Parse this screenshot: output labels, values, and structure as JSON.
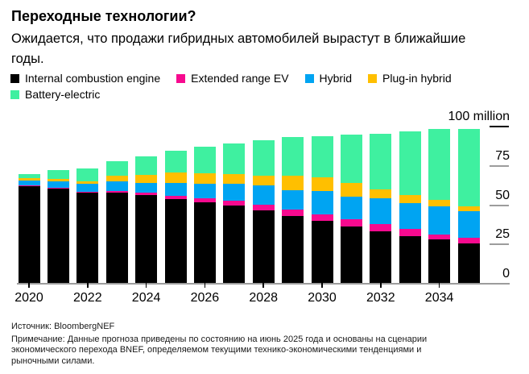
{
  "chart_data": {
    "type": "bar",
    "stacked": true,
    "title": "Переходные технологии?",
    "subtitle": "Ожидается, что продажи гибридных автомобилей вырастут в ближайшие\nгоды.",
    "unit": "million vehicles per year",
    "grid": false,
    "legend_position": "top-left",
    "categories": [
      "2020",
      "2021",
      "2022",
      "2023",
      "2024",
      "2025",
      "2026",
      "2027",
      "2028",
      "2029",
      "2030",
      "2031",
      "2032",
      "2033",
      "2034",
      "2035"
    ],
    "series": [
      {
        "id": "ice",
        "name": "Internal combustion engine",
        "color": "#000000",
        "values": [
          62,
          60,
          57.5,
          57.5,
          56,
          53.5,
          51.5,
          49.5,
          46,
          42.5,
          39.5,
          36,
          33,
          30,
          27.5,
          25
        ]
      },
      {
        "id": "erev",
        "name": "Extended range EV",
        "color": "#f70a8f",
        "values": [
          0.3,
          0.5,
          0.6,
          1.2,
          1.6,
          1.7,
          2.6,
          3,
          3.8,
          4,
          4,
          4.5,
          4.5,
          4.5,
          3.5,
          3.6
        ]
      },
      {
        "id": "hybrid",
        "name": "Hybrid",
        "color": "#00a4f2",
        "values": [
          3,
          4.3,
          4.8,
          6,
          6.2,
          8.5,
          8.9,
          10.5,
          12.3,
          12.7,
          15,
          14.5,
          16.6,
          16.5,
          17.8,
          17
        ]
      },
      {
        "id": "phev",
        "name": "Plug-in hybrid",
        "color": "#ffbf00",
        "values": [
          1.3,
          1.4,
          1.7,
          3.5,
          5.1,
          6.4,
          7,
          6.5,
          6.2,
          9,
          8.5,
          8.5,
          5.6,
          4.8,
          4.1,
          3
        ]
      },
      {
        "id": "bev",
        "name": "Battery-electric",
        "color": "#3ff0a0",
        "values": [
          2.4,
          5.4,
          8.1,
          9.4,
          11.5,
          13.8,
          16.6,
          19.1,
          22.6,
          24.4,
          26.5,
          31.1,
          35.4,
          40.8,
          44.8,
          49.3
        ]
      }
    ],
    "y_axis": {
      "range": [
        0,
        100
      ],
      "ticks": [
        {
          "value": 0,
          "label": "0"
        },
        {
          "value": 25,
          "label": "25"
        },
        {
          "value": 50,
          "label": "50"
        },
        {
          "value": 75,
          "label": "75"
        },
        {
          "value": 100,
          "label": "100 million"
        }
      ]
    },
    "x_axis": {
      "labeled_years": [
        "2020",
        "2022",
        "2024",
        "2026",
        "2028",
        "2030",
        "2032",
        "2034"
      ]
    },
    "palette": {
      "axis_line": "#9c9c9c",
      "top_tick": "#000000",
      "background": "#ffffff"
    }
  },
  "footer": {
    "source": "Источник: BloombergNEF",
    "note": "Примечание: Данные прогноза приведены по состоянию на июнь 2025 года и основаны на сценарии\nэкономического перехода BNEF, определяемом текущими технико-экономическими тенденциями и\nрыночными силами."
  }
}
